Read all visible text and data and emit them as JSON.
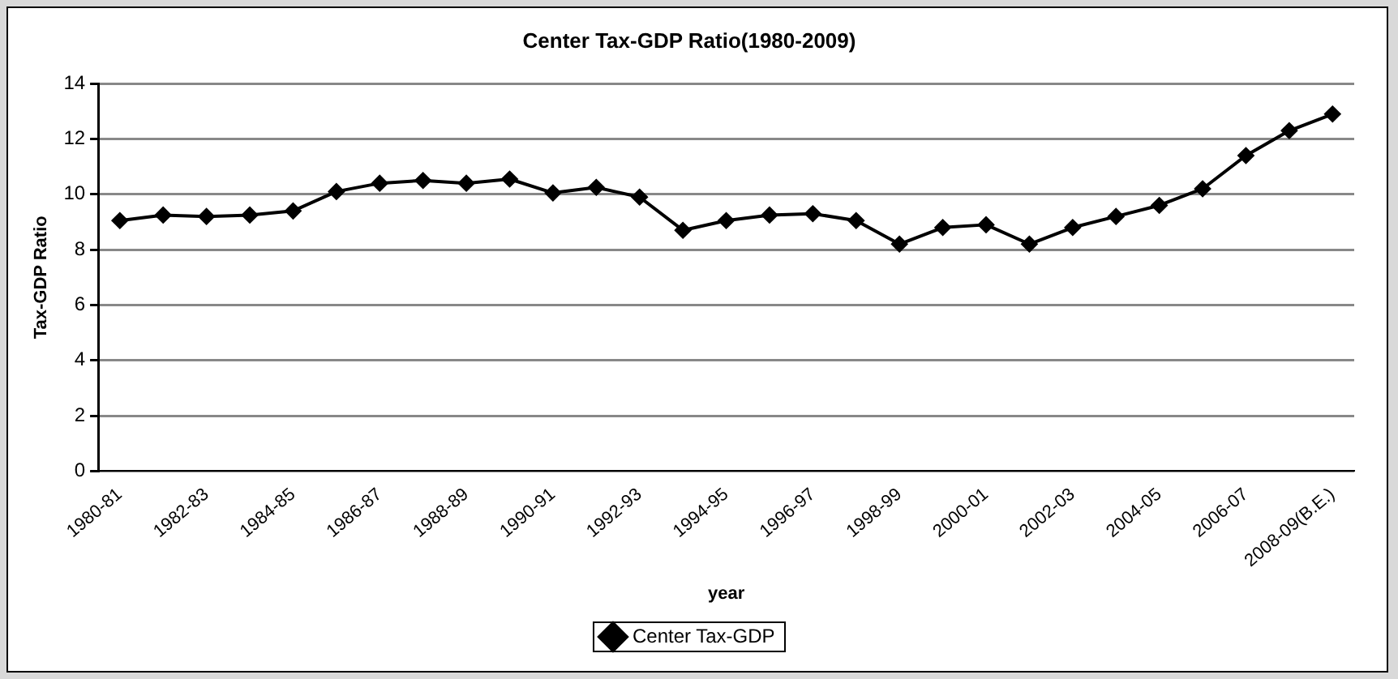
{
  "chart_data": {
    "type": "line",
    "title": "Center Tax-GDP Ratio(1980-2009)",
    "xlabel": "year",
    "ylabel": "Tax-GDP Ratio",
    "categories": [
      "1980-81",
      null,
      "1982-83",
      null,
      "1984-85",
      null,
      "1986-87",
      null,
      "1988-89",
      null,
      "1990-91",
      null,
      "1992-93",
      null,
      "1994-95",
      null,
      "1996-97",
      null,
      "1998-99",
      null,
      "2000-01",
      null,
      "2002-03",
      null,
      "2004-05",
      null,
      "2006-07",
      null,
      "2008-09(B.E.)"
    ],
    "series": [
      {
        "name": "Center Tax-GDP",
        "color": "#000000",
        "values": [
          9.05,
          9.25,
          9.2,
          9.25,
          9.4,
          10.1,
          10.4,
          10.5,
          10.4,
          10.55,
          10.05,
          10.25,
          9.9,
          8.7,
          9.05,
          9.25,
          9.3,
          9.05,
          8.2,
          8.8,
          8.9,
          8.2,
          8.8,
          9.2,
          9.6,
          10.2,
          11.4,
          12.3,
          12.9
        ]
      }
    ],
    "ylim": [
      0,
      14
    ],
    "yticks": [
      0,
      2,
      4,
      6,
      8,
      10,
      12,
      14
    ],
    "grid": "y",
    "legend": "bottom",
    "marker": "diamond",
    "line_style": "solid"
  }
}
